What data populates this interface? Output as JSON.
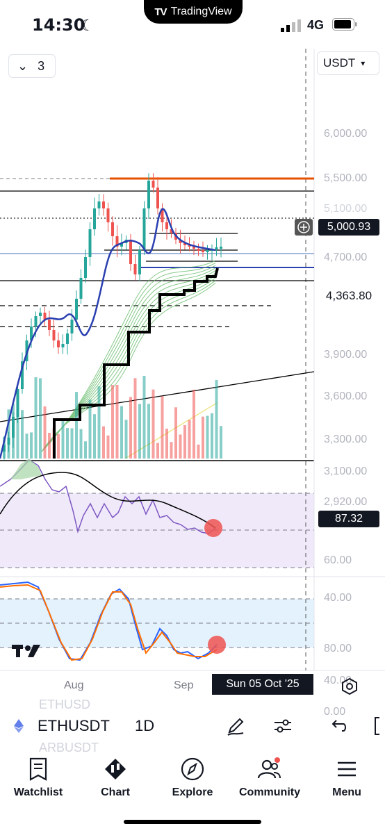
{
  "status_bar": {
    "time": "14:30",
    "network": "4G",
    "app_name": "TradingView"
  },
  "chart": {
    "collapse_count": "3",
    "currency": "USDT",
    "price_axis": [
      "6,000.00",
      "5,500.00",
      "5,100.00",
      "4,700.00",
      "4,363.80",
      "3,900.00",
      "3,600.00",
      "3,300.00",
      "3,100.00",
      "2,920.00"
    ],
    "price_target_label": "5,000.93",
    "last_price_label": "4,363.80",
    "rsi_axis": [
      "60.00",
      "40.00"
    ],
    "rsi_label": "87.32",
    "stoch_axis": [
      "80.00",
      "40.00",
      "0.00"
    ],
    "time_axis": [
      "Aug",
      "Sep"
    ],
    "crosshair_date": "Sun 05 Oct '25",
    "colors": {
      "target_line": "#e65100",
      "up_candle": "#26a69a",
      "down_candle": "#ef5350",
      "ema": "#2a3fb0",
      "rsi": "#7e57c2",
      "stoch_k": "#2962ff",
      "stoch_d": "#ff6d00"
    }
  },
  "toolbar": {
    "symbol": "ETHUSDT",
    "interval": "1D",
    "ghost_above": "ETHUSD",
    "ghost_below": "ARBUSDT",
    "icons": [
      "eth-icon",
      "pencil-icon",
      "indicator-sliders-icon",
      "undo-icon",
      "fullscreen-icon"
    ]
  },
  "bottom_nav": {
    "items": [
      {
        "label": "Watchlist",
        "icon": "watchlist-icon"
      },
      {
        "label": "Chart",
        "icon": "chart-icon"
      },
      {
        "label": "Explore",
        "icon": "compass-icon"
      },
      {
        "label": "Community",
        "icon": "community-icon"
      },
      {
        "label": "Menu",
        "icon": "menu-icon"
      }
    ]
  }
}
